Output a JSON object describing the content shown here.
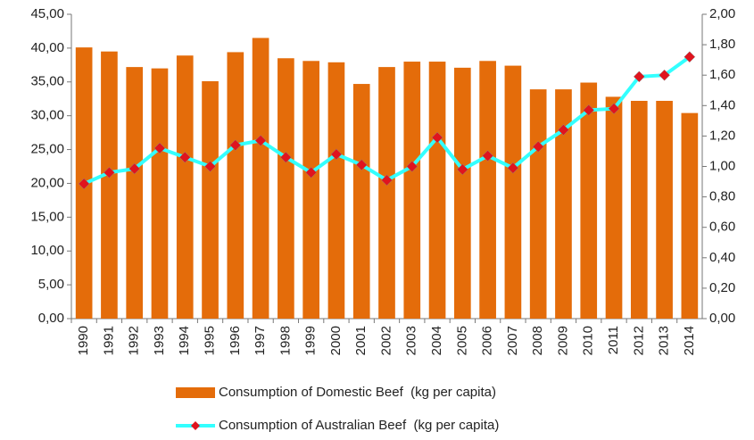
{
  "chart_data": {
    "type": "bar-line",
    "categories": [
      "1990",
      "1991",
      "1992",
      "1993",
      "1994",
      "1995",
      "1996",
      "1997",
      "1998",
      "1999",
      "2000",
      "2001",
      "2002",
      "2003",
      "2004",
      "2005",
      "2006",
      "2007",
      "2008",
      "2009",
      "2010",
      "2011",
      "2012",
      "2013",
      "2014"
    ],
    "series": [
      {
        "name": "Consumption of Domestic Beef  (kg per capita)",
        "type": "bar",
        "color": "#e46c0a",
        "values": [
          40.1,
          39.5,
          37.2,
          37.0,
          38.9,
          35.1,
          39.4,
          41.5,
          38.5,
          38.1,
          37.9,
          34.7,
          37.2,
          38.0,
          38.0,
          37.1,
          38.1,
          37.4,
          33.9,
          33.9,
          34.9,
          32.8,
          32.2,
          32.2,
          30.4
        ]
      },
      {
        "name": "Consumption of Australian Beef  (kg per capita)",
        "type": "line",
        "axis": "y2",
        "color": "#33ffff",
        "marker_color": "#e0141e",
        "values": [
          0.886,
          0.96,
          0.985,
          1.12,
          1.06,
          1.0,
          1.14,
          1.17,
          1.06,
          0.96,
          1.08,
          1.01,
          0.91,
          1.0,
          1.19,
          0.98,
          1.07,
          0.99,
          1.13,
          1.24,
          1.37,
          1.38,
          1.59,
          1.6,
          1.72
        ]
      }
    ],
    "ylim": [
      0,
      45
    ],
    "yticks": [
      {
        "value": 0,
        "label": "0,00"
      },
      {
        "value": 5,
        "label": "5,00"
      },
      {
        "value": 10,
        "label": "10,00"
      },
      {
        "value": 15,
        "label": "15,00"
      },
      {
        "value": 20,
        "label": "20,00"
      },
      {
        "value": 25,
        "label": "25,00"
      },
      {
        "value": 30,
        "label": "30,00"
      },
      {
        "value": 35,
        "label": "35,00"
      },
      {
        "value": 40,
        "label": "40,00"
      },
      {
        "value": 45,
        "label": "45,00"
      }
    ],
    "y2lim": [
      0,
      2
    ],
    "y2ticks": [
      {
        "value": 0,
        "label": "0,00"
      },
      {
        "value": 0.2,
        "label": "0,20"
      },
      {
        "value": 0.4,
        "label": "0,40"
      },
      {
        "value": 0.6,
        "label": "0,60"
      },
      {
        "value": 0.8,
        "label": "0,80"
      },
      {
        "value": 1,
        "label": "1,00"
      },
      {
        "value": 1.2,
        "label": "1,20"
      },
      {
        "value": 1.4,
        "label": "1,40"
      },
      {
        "value": 1.6,
        "label": "1,60"
      },
      {
        "value": 1.8,
        "label": "1,80"
      },
      {
        "value": 2,
        "label": "2,00"
      }
    ],
    "grid": false
  }
}
